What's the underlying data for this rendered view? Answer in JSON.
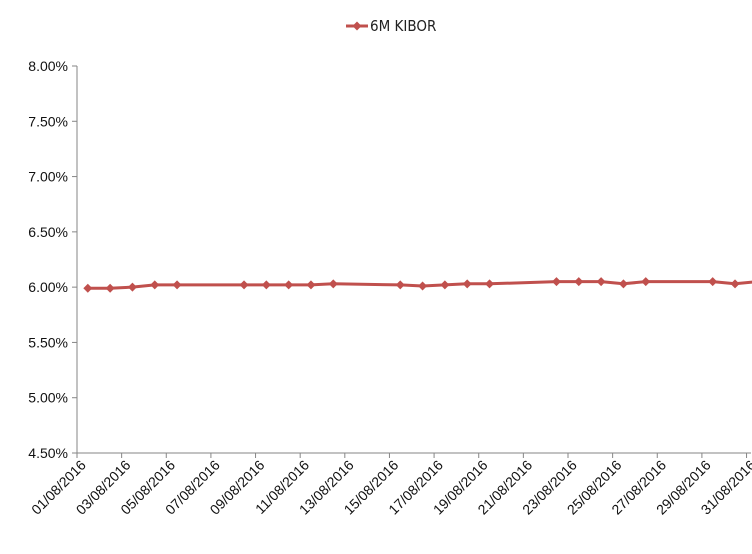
{
  "chart_data": {
    "type": "line",
    "title": "",
    "xlabel": "",
    "ylabel": "",
    "ylim": [
      0.045,
      0.08
    ],
    "y_tick_values": [
      0.045,
      0.05,
      0.055,
      0.06,
      0.065,
      0.07,
      0.075,
      0.08
    ],
    "y_tick_labels": [
      "4.50%",
      "5.00%",
      "5.50%",
      "6.00%",
      "6.50%",
      "7.00%",
      "7.50%",
      "8.00%"
    ],
    "x_tick_labels": [
      "01/08/2016",
      "03/08/2016",
      "05/08/2016",
      "07/08/2016",
      "09/08/2016",
      "11/08/2016",
      "13/08/2016",
      "15/08/2016",
      "17/08/2016",
      "19/08/2016",
      "21/08/2016",
      "23/08/2016",
      "25/08/2016",
      "27/08/2016",
      "29/08/2016",
      "31/08/2016"
    ],
    "legend_position": "top-center",
    "grid": false,
    "series": [
      {
        "name": "6M KIBOR",
        "color": "#c0504d",
        "marker": "diamond",
        "x": [
          "01/08/2016",
          "02/08/2016",
          "03/08/2016",
          "04/08/2016",
          "05/08/2016",
          "08/08/2016",
          "09/08/2016",
          "10/08/2016",
          "11/08/2016",
          "12/08/2016",
          "15/08/2016",
          "16/08/2016",
          "17/08/2016",
          "18/08/2016",
          "19/08/2016",
          "22/08/2016",
          "23/08/2016",
          "24/08/2016",
          "25/08/2016",
          "26/08/2016",
          "29/08/2016",
          "30/08/2016",
          "31/08/2016"
        ],
        "values": [
          0.0599,
          0.0599,
          0.06,
          0.0602,
          0.0602,
          0.0602,
          0.0602,
          0.0602,
          0.0602,
          0.0603,
          0.0602,
          0.0601,
          0.0602,
          0.0603,
          0.0603,
          0.0605,
          0.0605,
          0.0605,
          0.0603,
          0.0605,
          0.0605,
          0.0603,
          0.0605
        ]
      }
    ]
  }
}
